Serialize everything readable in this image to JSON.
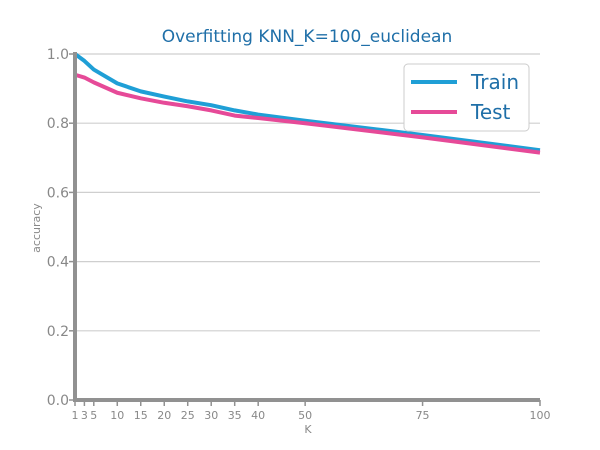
{
  "chart_data": {
    "type": "line",
    "title": "Overfitting KNN_K=100_euclidean",
    "xlabel": "K",
    "ylabel": "accuracy",
    "x": [
      1,
      3,
      5,
      10,
      15,
      20,
      25,
      30,
      35,
      40,
      50,
      75,
      100
    ],
    "xticks": [
      1,
      3,
      5,
      10,
      15,
      20,
      25,
      30,
      35,
      40,
      50,
      75,
      100
    ],
    "yticks": [
      0.0,
      0.2,
      0.4,
      0.6,
      0.8,
      1.0
    ],
    "xlim": [
      1,
      100
    ],
    "ylim": [
      0,
      1
    ],
    "grid": "horizontal",
    "legend_position": "top-right",
    "series": [
      {
        "name": "Train",
        "color": "#1f9fd6",
        "values": [
          1.0,
          0.98,
          0.955,
          0.915,
          0.892,
          0.877,
          0.863,
          0.852,
          0.837,
          0.825,
          0.807,
          0.766,
          0.722
        ]
      },
      {
        "name": "Test",
        "color": "#e64a98",
        "values": [
          0.94,
          0.932,
          0.918,
          0.888,
          0.872,
          0.859,
          0.849,
          0.837,
          0.822,
          0.815,
          0.8,
          0.759,
          0.715
        ]
      }
    ],
    "colors": {
      "title": "#1f6fa8",
      "axis": "#919191",
      "grid": "#cfcfcf",
      "tick_text": "#888888"
    }
  }
}
